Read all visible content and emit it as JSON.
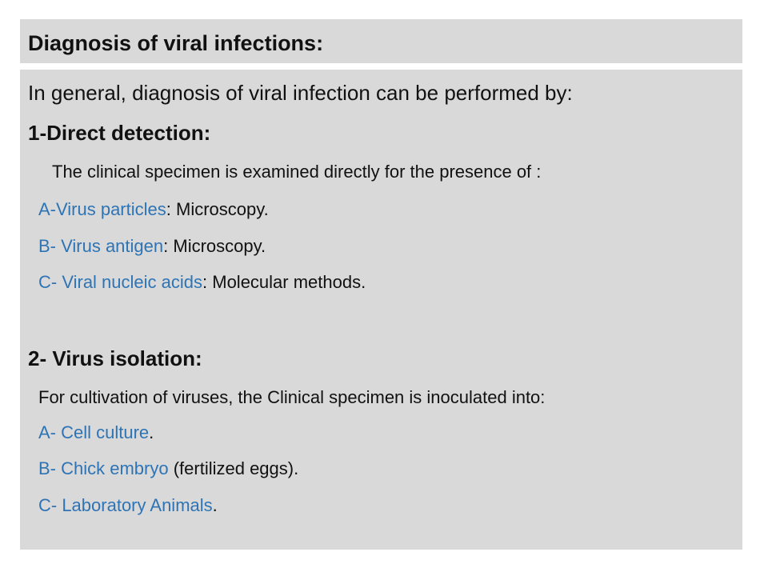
{
  "slide": {
    "title": "Diagnosis of viral infections:",
    "intro": "In general, diagnosis of viral infection can be performed by:",
    "sections": [
      {
        "heading": "1-Direct detection:",
        "description": "The clinical specimen is examined directly for the presence of :",
        "items": [
          {
            "term": "A-Virus particles",
            "rest": ": Microscopy."
          },
          {
            "term": "B- Virus antigen",
            "rest": ":  Microscopy."
          },
          {
            "term": "C- Viral nucleic acids",
            "rest": ":  Molecular methods."
          }
        ]
      },
      {
        "heading": "2- Virus isolation:",
        "description": "For cultivation of viruses, the Clinical specimen is inoculated into:",
        "items": [
          {
            "term": "A- Cell culture",
            "rest": "."
          },
          {
            "term": "B- Chick embryo",
            "rest": " (fertilized eggs)."
          },
          {
            "term": "C- Laboratory Animals",
            "rest": "."
          }
        ]
      }
    ]
  },
  "colors": {
    "background": "#d9d9d9",
    "accent": "#2e74b5",
    "text": "#111111"
  }
}
